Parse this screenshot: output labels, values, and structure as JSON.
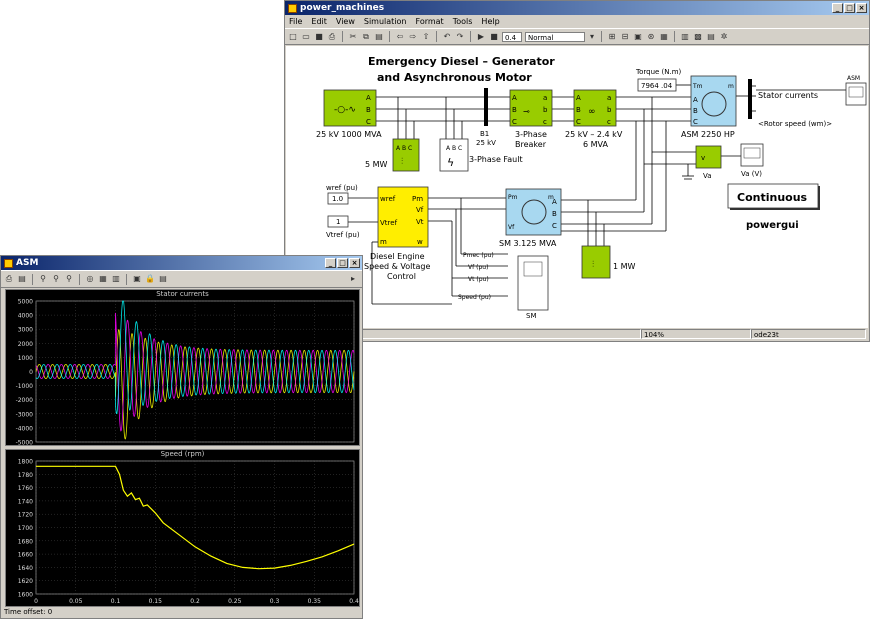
{
  "model_window": {
    "title": "power_machines",
    "menu": [
      "File",
      "Edit",
      "View",
      "Simulation",
      "Format",
      "Tools",
      "Help"
    ],
    "toolbar": {
      "stop_time": "0.4",
      "sim_mode": "Normal"
    },
    "diagram": {
      "heading_line1": "Emergency Diesel – Generator",
      "heading_line2": "and Asynchronous Motor",
      "source_label": "25 kV  1000 MVA",
      "load_5mw": "5 MW",
      "bus_b1": "B1",
      "bus_25kv": "25 kV",
      "fault_label": "3-Phase Fault",
      "breaker_line1": "3-Phase",
      "breaker_line2": "Breaker",
      "transformer_line1": "25 kV – 2.4 kV",
      "transformer_line2": "6 MVA",
      "torque_label": "Torque (N.m)",
      "torque_value": "7964 .04",
      "asm_label": "ASM  2250 HP",
      "asm_block": "ASM",
      "stator_currents": "Stator currents",
      "rotor_speed": "<Rotor speed (wm)>",
      "va_block": "Va",
      "va_scope": "Va (V)",
      "continuous": "Continuous",
      "powergui": "powergui",
      "wref_label": "wref  (pu)",
      "wref_value": "1.0",
      "vtref_value": "1",
      "vtref_label": "Vtref  (pu)",
      "diesel_line1": "Diesel Engine",
      "diesel_line2": "Speed  &  Voltage",
      "diesel_line3": "Control",
      "sm_label": "SM  3.125  MVA",
      "load_1mw": "1 MW",
      "sm_scope": "SM",
      "sig_pmec": "Pmec  (pu)",
      "sig_vf": "Vf  (pu)",
      "sig_vt": "Vt  (pu)",
      "sig_speed": "Speed  (pu)"
    },
    "status": {
      "zoom": "104%",
      "solver": "ode23t"
    }
  },
  "scope_window": {
    "title": "ASM",
    "time_offset_label": "Time offset:",
    "time_offset_value": "0"
  },
  "chart_data": [
    {
      "type": "line",
      "title": "Stator currents",
      "xlim": [
        0,
        0.4
      ],
      "ylim": [
        -5000,
        5000
      ],
      "yticks": [
        5000,
        4000,
        3000,
        2000,
        1000,
        0,
        -1000,
        -2000,
        -3000,
        -4000,
        -5000
      ],
      "grid": true,
      "series_colors": [
        "#ffff00",
        "#ff00ff",
        "#00ffff"
      ],
      "description_points": {
        "pre_fault_amplitude": 500,
        "fault_time": 0.1,
        "peak_amplitude": 4800,
        "post_fault_amplitude": 1500
      }
    },
    {
      "type": "line",
      "title": "Speed (rpm)",
      "xlim": [
        0,
        0.4
      ],
      "ylim": [
        1600,
        1800
      ],
      "xticks": [
        0,
        0.05,
        0.1,
        0.15,
        0.2,
        0.25,
        0.3,
        0.35,
        0.4
      ],
      "xtick_labels": [
        "0",
        "0.05",
        "0.1",
        "0.15",
        "0.2",
        "0.25",
        "0.3",
        "0.35",
        "0.4"
      ],
      "yticks": [
        1800,
        1780,
        1760,
        1740,
        1720,
        1700,
        1680,
        1660,
        1640,
        1620,
        1600
      ],
      "grid": true,
      "series": [
        {
          "color": "#ffff00",
          "x": [
            0,
            0.1,
            0.105,
            0.11,
            0.115,
            0.12,
            0.125,
            0.13,
            0.135,
            0.14,
            0.15,
            0.16,
            0.18,
            0.2,
            0.22,
            0.24,
            0.26,
            0.28,
            0.3,
            0.32,
            0.34,
            0.36,
            0.38,
            0.4
          ],
          "values": [
            1792,
            1792,
            1780,
            1756,
            1747,
            1752,
            1742,
            1744,
            1732,
            1734,
            1722,
            1707,
            1689,
            1671,
            1657,
            1646,
            1640,
            1638,
            1639,
            1643,
            1649,
            1656,
            1665,
            1675
          ]
        }
      ]
    }
  ]
}
